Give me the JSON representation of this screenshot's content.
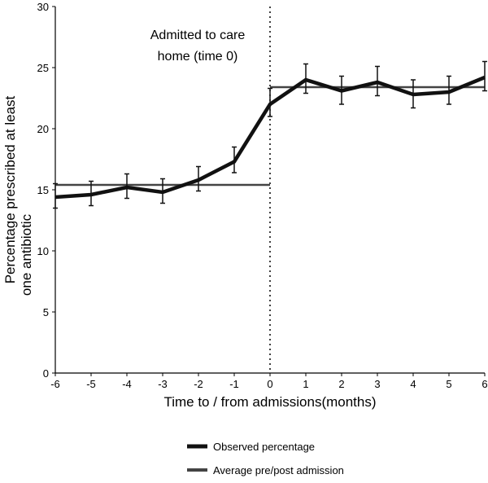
{
  "chart_data": {
    "type": "line",
    "title": "",
    "xlabel": "Time to / from admissions(months)",
    "ylabel": "Percentage prescribed at least one antibiotic",
    "xlim": [
      -6,
      6
    ],
    "ylim": [
      0,
      30
    ],
    "xticks": [
      -6,
      -5,
      -4,
      -3,
      -2,
      -1,
      0,
      1,
      2,
      3,
      4,
      5,
      6
    ],
    "yticks": [
      0,
      5,
      10,
      15,
      20,
      25,
      30
    ],
    "grid": false,
    "legend_position": "bottom",
    "annotation": {
      "lines": [
        "Admitted to care",
        "home (time 0)"
      ],
      "x": 0
    },
    "series": [
      {
        "name": "Observed percentage",
        "color": "#111111",
        "x": [
          -6,
          -5,
          -4,
          -3,
          -2,
          -1,
          0,
          1,
          2,
          3,
          4,
          5,
          6
        ],
        "y": [
          14.4,
          14.6,
          15.2,
          14.8,
          15.8,
          17.3,
          22.0,
          24.0,
          23.1,
          23.8,
          22.8,
          23.0,
          24.2
        ],
        "error_low": [
          13.5,
          13.7,
          14.3,
          13.9,
          14.9,
          16.4,
          21.0,
          22.9,
          22.0,
          22.7,
          21.7,
          22.0,
          23.1
        ],
        "error_high": [
          15.5,
          15.7,
          16.3,
          15.9,
          16.9,
          18.5,
          23.3,
          25.3,
          24.3,
          25.1,
          24.0,
          24.3,
          25.5
        ]
      },
      {
        "name": "Average pre/post admission",
        "color": "#444444",
        "segments": [
          {
            "x": [
              -6,
              0
            ],
            "y": 15.4
          },
          {
            "x": [
              0,
              6
            ],
            "y": 23.4
          }
        ]
      }
    ]
  }
}
